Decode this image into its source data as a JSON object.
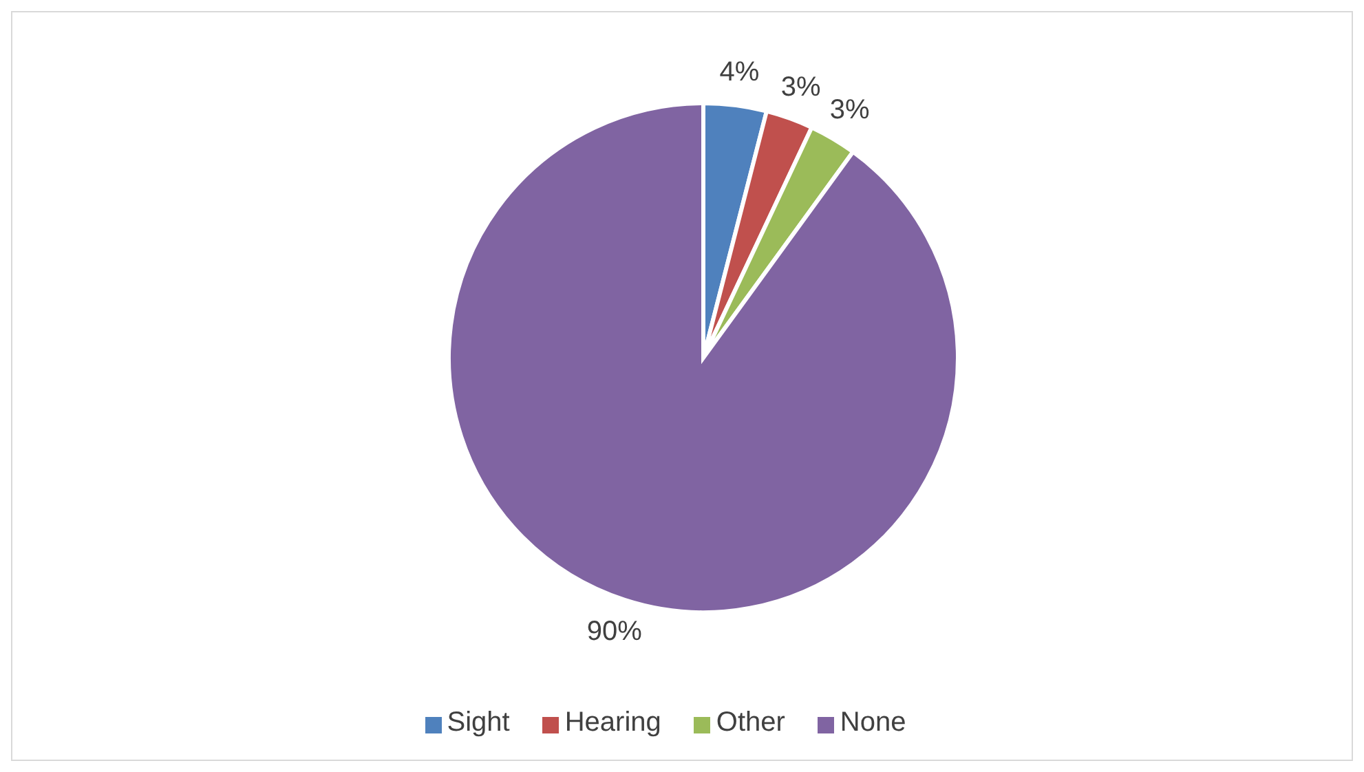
{
  "chart_data": {
    "type": "pie",
    "categories": [
      "Sight",
      "Hearing",
      "Other",
      "None"
    ],
    "values": [
      4,
      3,
      3,
      90
    ],
    "value_labels": [
      "4%",
      "3%",
      "3%",
      "90%"
    ],
    "colors": [
      "#4f81bd",
      "#c0504d",
      "#9bbb59",
      "#8064a2"
    ],
    "legend": "bottom"
  }
}
